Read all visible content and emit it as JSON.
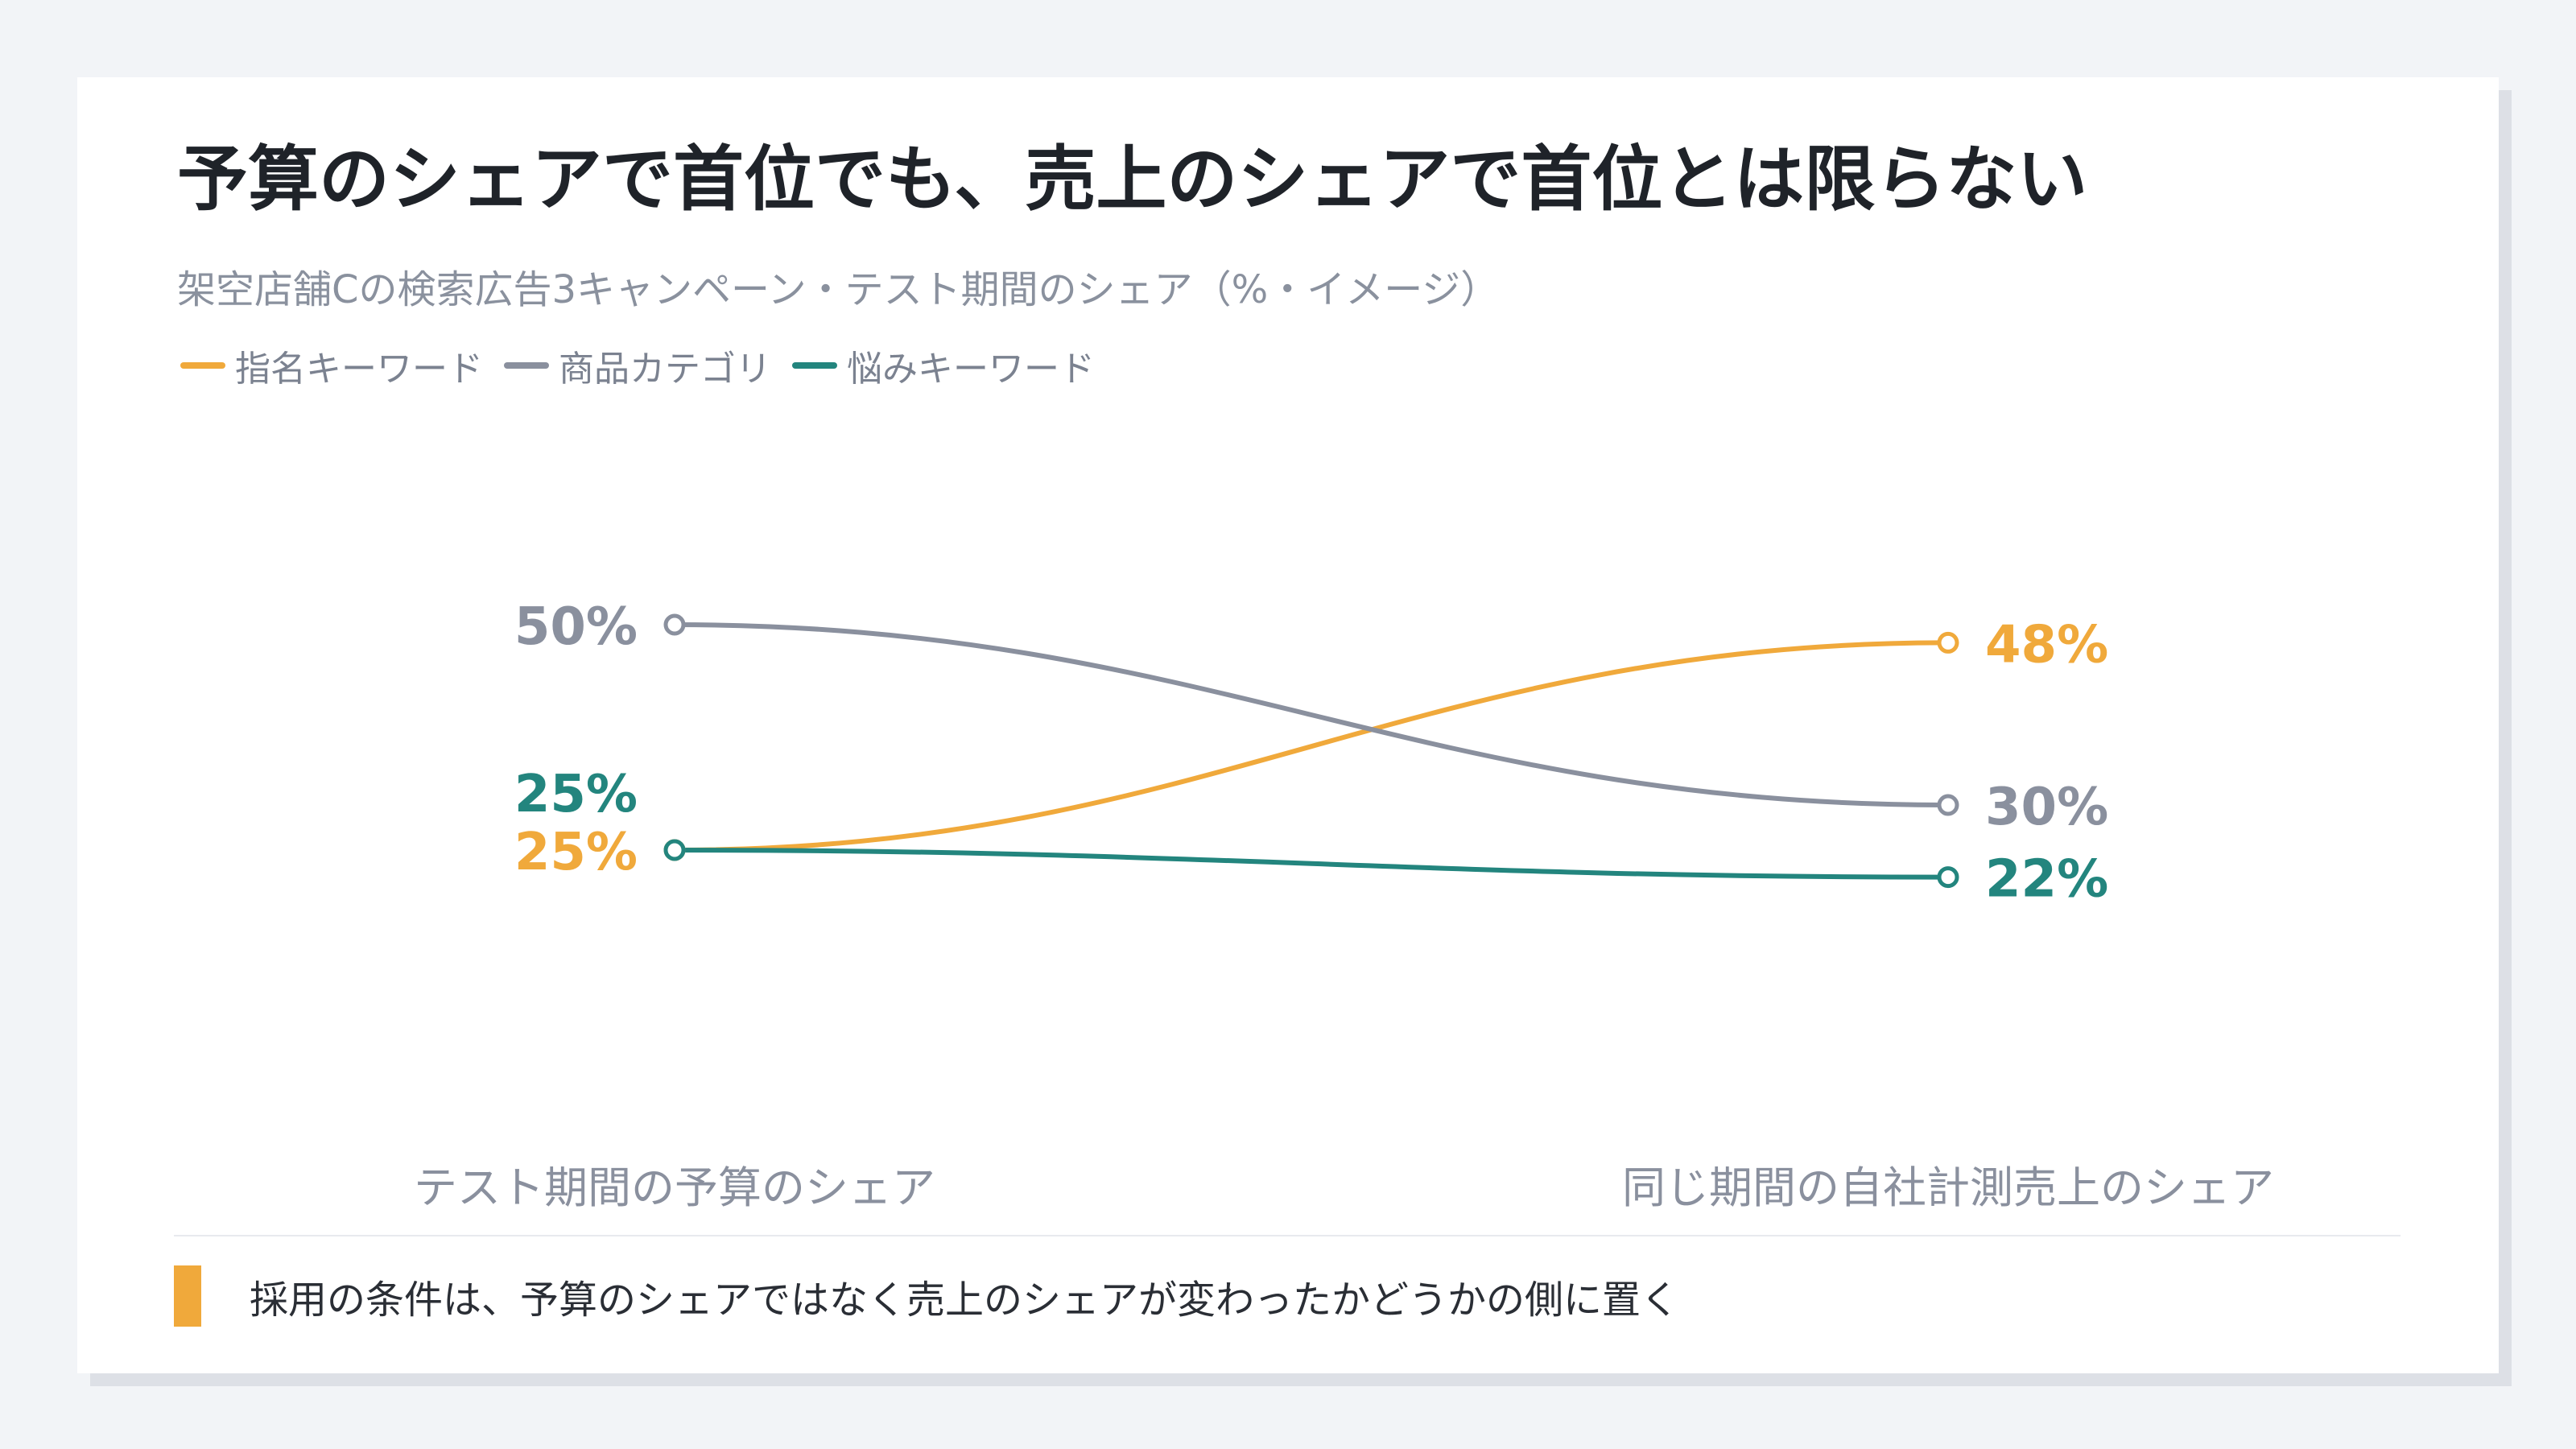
{
  "title": "予算のシェアで首位でも、売上のシェアで首位とは限らない",
  "subtitle": "架空店舗Cの検索広告3キャンペーン・テスト期間のシェア（%・イメージ）",
  "note": "採用の条件は、予算のシェアではなく売上のシェアが変わったかどうかの側に置く",
  "colors": {
    "accent": "#f0a93b",
    "gray": "#8a909e",
    "teal": "#23857e",
    "background": "#f2f4f7",
    "card": "#ffffff"
  },
  "chart_data": {
    "type": "line",
    "title": "予算のシェアで首位でも、売上のシェアで首位とは限らない",
    "subtitle": "架空店舗Cの検索広告3キャンペーン・テスト期間のシェア（%・イメージ）",
    "categories": [
      "テスト期間の予算のシェア",
      "同じ期間の自社計測売上のシェア"
    ],
    "series": [
      {
        "name": "指名キーワード",
        "values": [
          25,
          48
        ],
        "labels": [
          "25%",
          "48%"
        ],
        "color": "#f0a93b"
      },
      {
        "name": "商品カテゴリ",
        "values": [
          50,
          30
        ],
        "labels": [
          "50%",
          "30%"
        ],
        "color": "#8a909e"
      },
      {
        "name": "悩みキーワード",
        "values": [
          25,
          22
        ],
        "labels": [
          "25%",
          "22%"
        ],
        "color": "#23857e"
      }
    ],
    "legend": "top-left",
    "grid": false
  }
}
